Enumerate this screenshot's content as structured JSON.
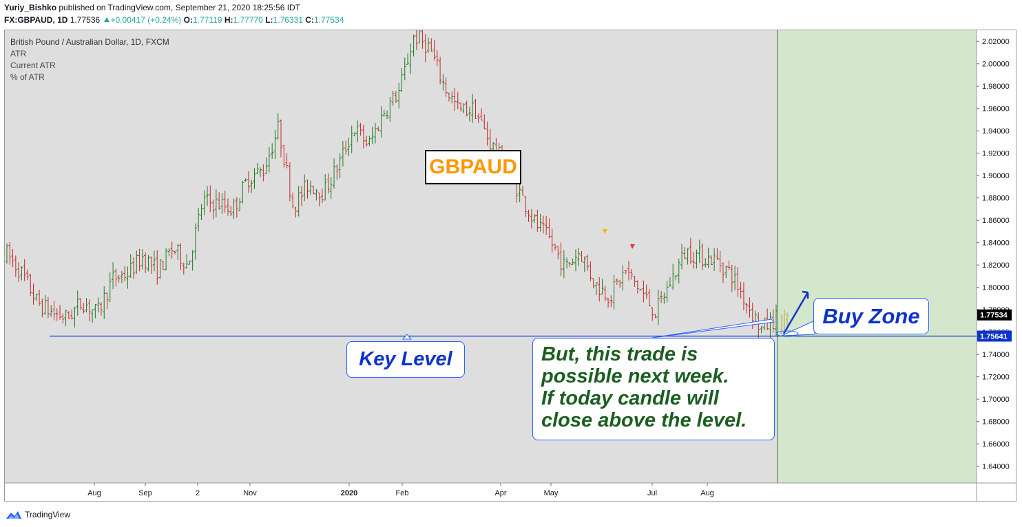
{
  "header": {
    "author": "Yuriy_Bishko",
    "published_text": "published on TradingView.com, September 21, 2020 18:25:56 IDT",
    "symbol": "FX:GBPAUD, 1D",
    "last": "1.77536",
    "change": "+0.00417 (+0.24%)",
    "o_label": "O:",
    "o_value": "1.77119",
    "h_label": "H:",
    "h_value": "1.77770",
    "l_label": "L:",
    "l_value": "1.76331",
    "c_label": "C:",
    "c_value": "1.77534"
  },
  "legend": {
    "title": "British Pound / Australian Dollar, 1D, FXCM",
    "items": [
      "ATR",
      "Current ATR",
      "% of ATR"
    ]
  },
  "annotations": {
    "title_box": "GBPAUD",
    "key_level": "Key Level",
    "buy_zone": "Buy Zone",
    "note_lines": [
      "But, this trade is",
      "possible next week.",
      "If today candle will",
      "close above the level."
    ]
  },
  "brand": {
    "name": "TradingView"
  },
  "colors": {
    "background": "#dedede",
    "future_zone": "#d4e6cc",
    "up_bar": "#1e7b1e",
    "down_bar": "#c62828",
    "key_level_line": "#0d34c9",
    "title_text": "#ff9800",
    "callout_text": "#0d34c9",
    "note_text": "#1b5e20"
  },
  "chart_data": {
    "type": "ohlc",
    "symbol": "FX:GBPAUD",
    "interval": "1D",
    "ylim": [
      1.625,
      2.03
    ],
    "y_ticks": [
      "2.02000",
      "2.00000",
      "1.98000",
      "1.96000",
      "1.94000",
      "1.92000",
      "1.90000",
      "1.88000",
      "1.86000",
      "1.84000",
      "1.82000",
      "1.80000",
      "1.78000",
      "1.76000",
      "1.74000",
      "1.72000",
      "1.70000",
      "1.68000",
      "1.66000",
      "1.64000"
    ],
    "x_ticks": [
      "Aug",
      "Sep",
      "2",
      "Nov",
      "2020",
      "Feb",
      "Apr",
      "May",
      "Jul",
      "Aug"
    ],
    "key_level": {
      "value": 1.75641,
      "label": "1.75641"
    },
    "last_price": {
      "value": 1.77534,
      "label": "1.77534"
    },
    "path": [
      [
        1.825,
        1.835
      ],
      [
        1.82,
        1.805
      ],
      [
        1.798,
        1.775
      ],
      [
        1.79,
        1.765
      ],
      [
        1.775,
        1.77
      ],
      [
        1.785,
        1.79
      ],
      [
        1.775,
        1.778
      ],
      [
        1.805,
        1.81
      ],
      [
        1.82,
        1.805
      ],
      [
        1.815,
        1.84
      ],
      [
        1.815,
        1.815
      ],
      [
        1.84,
        1.83
      ],
      [
        1.825,
        1.815
      ],
      [
        1.85,
        1.905
      ],
      [
        1.88,
        1.87
      ],
      [
        1.875,
        1.865
      ],
      [
        1.895,
        1.9
      ],
      [
        1.9,
        1.91
      ],
      [
        1.94,
        1.945
      ],
      [
        1.875,
        1.87
      ],
      [
        1.885,
        1.9
      ],
      [
        1.88,
        1.89
      ],
      [
        1.905,
        1.915
      ],
      [
        1.935,
        1.95
      ],
      [
        1.925,
        1.93
      ],
      [
        1.945,
        1.97
      ],
      [
        1.97,
        1.98
      ],
      [
        2.02,
        2.03
      ],
      [
        2.01,
        2.02
      ],
      [
        1.985,
        1.975
      ],
      [
        1.96,
        1.955
      ],
      [
        1.965,
        1.955
      ],
      [
        1.93,
        1.93
      ],
      [
        1.915,
        1.905
      ],
      [
        1.89,
        1.88
      ],
      [
        1.86,
        1.855
      ],
      [
        1.845,
        1.84
      ],
      [
        1.82,
        1.815
      ],
      [
        1.83,
        1.835
      ],
      [
        1.805,
        1.8
      ],
      [
        1.795,
        1.79
      ],
      [
        1.81,
        1.82
      ],
      [
        1.805,
        1.79
      ],
      [
        1.775,
        1.78
      ],
      [
        1.8,
        1.81
      ],
      [
        1.83,
        1.835
      ],
      [
        1.825,
        1.83
      ],
      [
        1.825,
        1.825
      ],
      [
        1.815,
        1.81
      ],
      [
        1.79,
        1.785
      ],
      [
        1.765,
        1.76
      ],
      [
        1.77,
        1.775
      ]
    ],
    "future_zone_start": "Sep 21, 2020"
  }
}
